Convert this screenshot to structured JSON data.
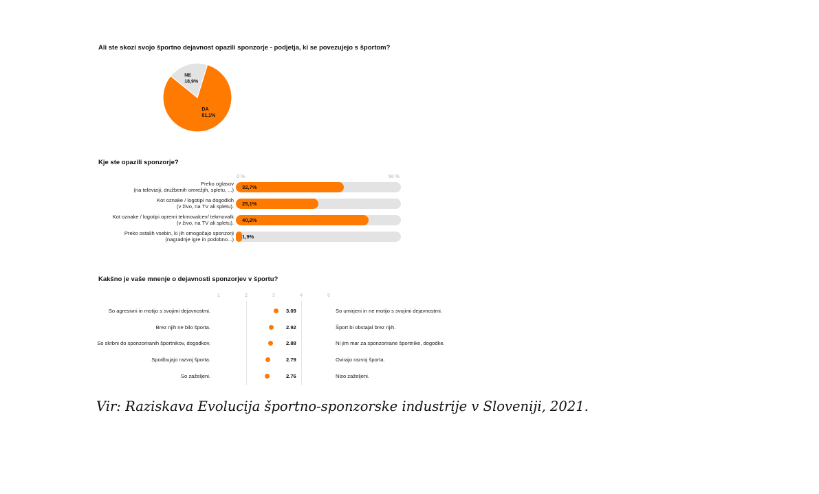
{
  "chart_data": [
    {
      "type": "pie",
      "title": "Ali ste skozi svojo športno dejavnost opazili sponzorje - podjetja, ki se povezujejo s športom?",
      "slices": [
        {
          "label": "DA",
          "value": 81.1,
          "display": "81,1%",
          "color": "#ff7a00"
        },
        {
          "label": "NE",
          "value": 18.9,
          "display": "18,9%",
          "color": "#e3e3e3"
        }
      ]
    },
    {
      "type": "bar",
      "orientation": "horizontal",
      "title": "Kje ste opazili sponzorje?",
      "xlim": [
        0,
        50
      ],
      "axis_ticks": [
        "0 %",
        "50 %"
      ],
      "categories": [
        [
          "Preko oglasov",
          "(na televiziji, družbenih omrežjih, spletu, ...)"
        ],
        [
          "Kot oznake / logotipi na dogodkih",
          "(v živo, na TV ali spletu)."
        ],
        [
          "Kot oznake / logotipi opremi tekmovalcev/ tekmovalk",
          "(v živo, na TV ali spletu)."
        ],
        [
          "Preko ostalih vsebin, ki jih omogočajo sponzorji",
          "(nagradnje igre in podobno...)"
        ]
      ],
      "values": [
        32.7,
        25.1,
        40.2,
        1.9
      ],
      "value_labels": [
        "32,7%",
        "25,1%",
        "40,2%",
        "1,9%"
      ],
      "bar_color": "#ff7a00",
      "track_color": "#e3e3e3"
    },
    {
      "type": "scatter",
      "title": "Kakšno je vaše mnenje o dejavnosti sponzorjev v športu?",
      "scale": [
        1,
        2,
        3,
        4,
        5
      ],
      "xlim": [
        1,
        5
      ],
      "left_labels": [
        "So agresivni in motijo s svojimi dejavnostmi.",
        "Brez njih ne bilo športa.",
        "So skrbni do sponzoriranih športnikov, dogodkov.",
        "Spodbujajo razvoj športa.",
        "So zaželjeni."
      ],
      "right_labels": [
        "So umirjeni in ne motijo s svojimi dejavnostmi.",
        "Šport bi obstajal brez njih.",
        "Ni jim mar za sponzorirane športnike, dogodke.",
        "Ovirajo razvoj športa.",
        "Niso zaželjeni."
      ],
      "values": [
        3.09,
        2.92,
        2.88,
        2.79,
        2.76
      ],
      "value_labels": [
        "3.09",
        "2.92",
        "2.88",
        "2.79",
        "2.76"
      ],
      "dot_color": "#ff7a00"
    }
  ],
  "source": "Vir: Raziskava Evolucija športno-sponzorske industrije v Sloveniji, 2021."
}
